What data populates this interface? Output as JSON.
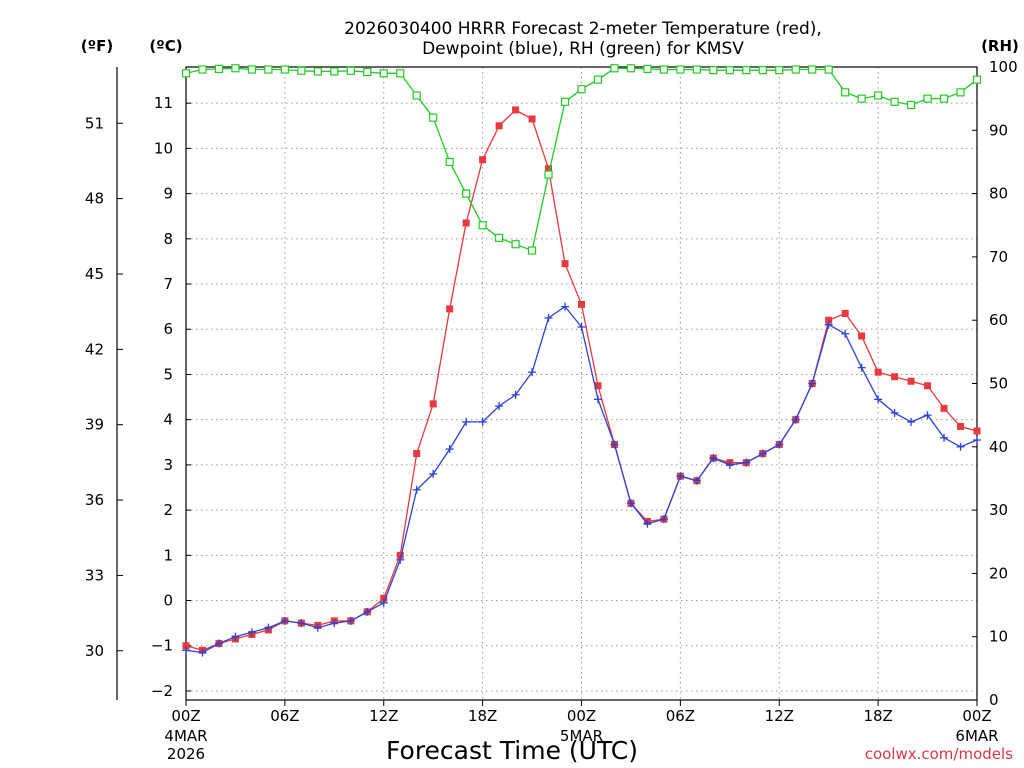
{
  "chart_data": {
    "type": "line",
    "title_line1": "2026030400 HRRR Forecast 2-meter Temperature (red),",
    "title_line2": "Dewpoint (blue), RH (green) for KMSV",
    "xlabel": "Forecast Time (UTC)",
    "credit": "coolwx.com/models",
    "units": {
      "fahrenheit": "(ºF)",
      "celsius": "(ºC)",
      "rh": "(RH)"
    },
    "x_hours": [
      0,
      1,
      2,
      3,
      4,
      5,
      6,
      7,
      8,
      9,
      10,
      11,
      12,
      13,
      14,
      15,
      16,
      17,
      18,
      19,
      20,
      21,
      22,
      23,
      24,
      25,
      26,
      27,
      28,
      29,
      30,
      31,
      32,
      33,
      34,
      35,
      36,
      37,
      38,
      39,
      40,
      41,
      42,
      43,
      44,
      45,
      46,
      47,
      48
    ],
    "xlim": [
      0,
      48
    ],
    "x_ticks": [
      {
        "hour": 0,
        "label": "00Z",
        "sub1": "4MAR",
        "sub2": "2026"
      },
      {
        "hour": 6,
        "label": "06Z",
        "sub1": "",
        "sub2": ""
      },
      {
        "hour": 12,
        "label": "12Z",
        "sub1": "",
        "sub2": ""
      },
      {
        "hour": 18,
        "label": "18Z",
        "sub1": "",
        "sub2": ""
      },
      {
        "hour": 24,
        "label": "00Z",
        "sub1": "5MAR",
        "sub2": ""
      },
      {
        "hour": 30,
        "label": "06Z",
        "sub1": "",
        "sub2": ""
      },
      {
        "hour": 36,
        "label": "12Z",
        "sub1": "",
        "sub2": ""
      },
      {
        "hour": 42,
        "label": "18Z",
        "sub1": "",
        "sub2": ""
      },
      {
        "hour": 48,
        "label": "00Z",
        "sub1": "6MAR",
        "sub2": ""
      }
    ],
    "y_celsius": {
      "lim": [
        -2.2,
        11.8
      ],
      "ticks": [
        -2,
        -1,
        0,
        1,
        2,
        3,
        4,
        5,
        6,
        7,
        8,
        9,
        10,
        11
      ]
    },
    "y_fahrenheit": {
      "ticks": [
        30,
        33,
        36,
        39,
        42,
        45,
        48,
        51
      ]
    },
    "y_rh": {
      "lim": [
        0,
        100
      ],
      "ticks": [
        0,
        10,
        20,
        30,
        40,
        50,
        60,
        70,
        80,
        90,
        100
      ]
    },
    "grid": true,
    "series": [
      {
        "name": "Temperature",
        "units": "C",
        "color": "#e8393e",
        "marker": "filled-square",
        "values": [
          -1.0,
          -1.1,
          -0.95,
          -0.85,
          -0.75,
          -0.65,
          -0.45,
          -0.5,
          -0.55,
          -0.45,
          -0.45,
          -0.25,
          0.05,
          1.0,
          3.25,
          4.35,
          6.45,
          8.35,
          9.75,
          10.5,
          10.85,
          10.65,
          9.55,
          7.45,
          6.55,
          4.75,
          3.45,
          2.15,
          1.75,
          1.8,
          2.75,
          2.65,
          3.15,
          3.05,
          3.05,
          3.25,
          3.45,
          4.0,
          4.8,
          6.2,
          6.35,
          5.85,
          5.05,
          4.95,
          4.85,
          4.75,
          4.25,
          3.85,
          3.75
        ]
      },
      {
        "name": "Dewpoint",
        "units": "C",
        "color": "#2a44d8",
        "marker": "plus",
        "values": [
          -1.1,
          -1.15,
          -0.95,
          -0.8,
          -0.7,
          -0.6,
          -0.45,
          -0.5,
          -0.6,
          -0.5,
          -0.45,
          -0.25,
          -0.05,
          0.9,
          2.45,
          2.8,
          3.35,
          3.95,
          3.95,
          4.3,
          4.55,
          5.05,
          6.25,
          6.5,
          6.05,
          4.45,
          3.45,
          2.15,
          1.7,
          1.8,
          2.75,
          2.65,
          3.15,
          3.0,
          3.05,
          3.25,
          3.45,
          4.0,
          4.8,
          6.1,
          5.9,
          5.15,
          4.45,
          4.15,
          3.95,
          4.1,
          3.6,
          3.4,
          3.55
        ]
      },
      {
        "name": "RH",
        "units": "%",
        "color": "#22cc22",
        "marker": "open-square",
        "values": [
          99.0,
          99.6,
          99.7,
          99.8,
          99.6,
          99.6,
          99.6,
          99.4,
          99.3,
          99.3,
          99.4,
          99.2,
          99.0,
          99.0,
          95.5,
          92.0,
          85.0,
          80.0,
          75.0,
          73.0,
          72.0,
          71.0,
          83.0,
          94.5,
          96.5,
          98.0,
          99.8,
          99.8,
          99.7,
          99.6,
          99.6,
          99.6,
          99.5,
          99.5,
          99.5,
          99.5,
          99.5,
          99.6,
          99.6,
          99.6,
          96.0,
          95.0,
          95.5,
          94.5,
          94.0,
          95.0,
          95.0,
          96.0,
          98.0
        ]
      }
    ]
  }
}
